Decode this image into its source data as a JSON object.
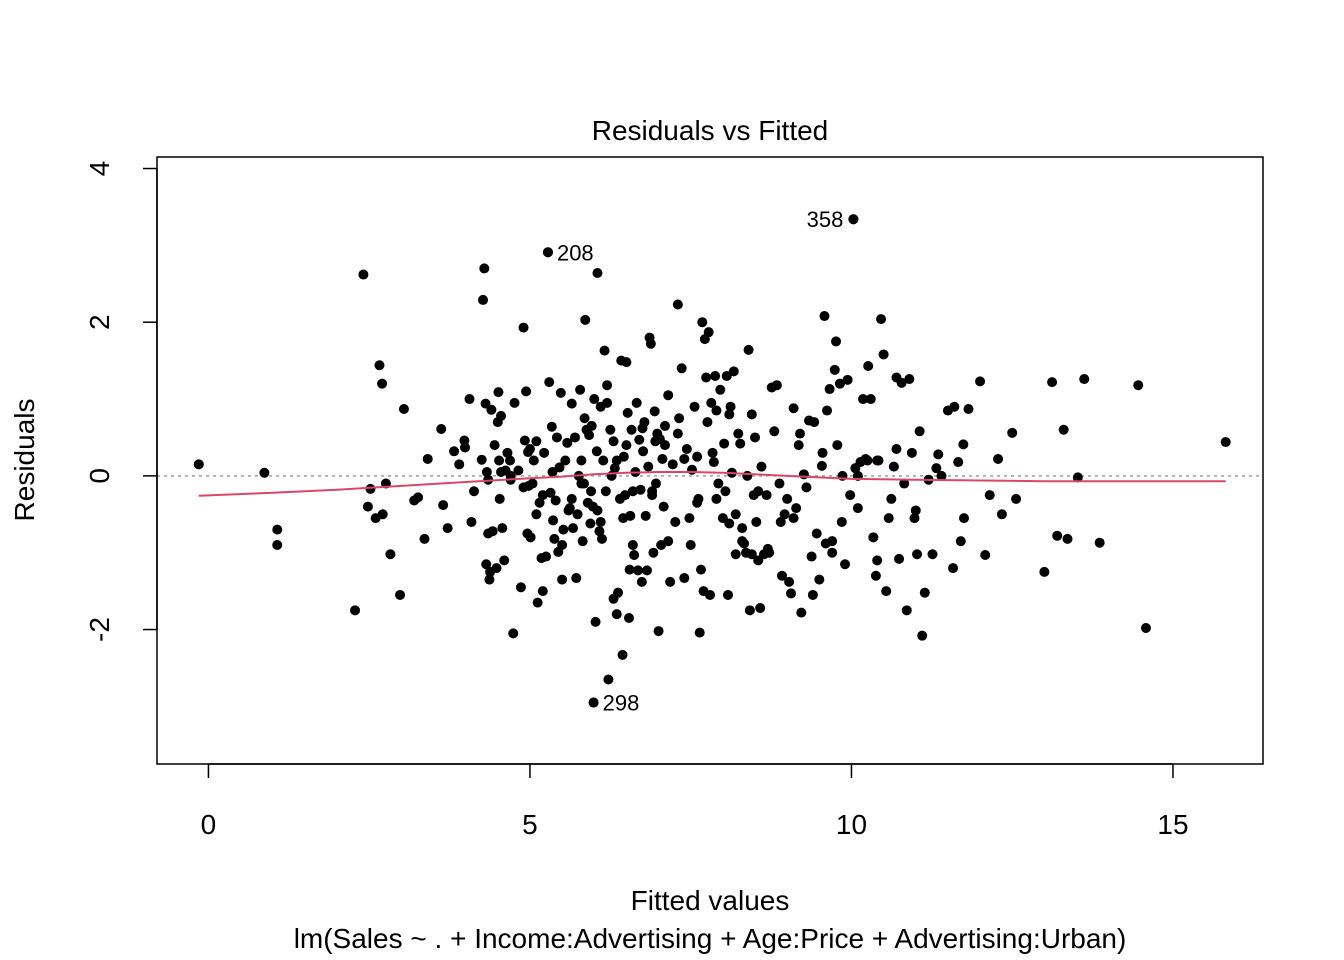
{
  "chart_data": {
    "type": "scatter",
    "title": "Residuals vs Fitted",
    "xlabel": "Fitted values",
    "ylabel": "Residuals",
    "subtitle": "lm(Sales ~ . + Income:Advertising + Age:Price + Advertising:Urban)",
    "xlim": [
      -0.8,
      16.4
    ],
    "ylim": [
      -3.75,
      4.15
    ],
    "x_ticks": [
      0,
      5,
      10,
      15
    ],
    "y_ticks": [
      -2,
      0,
      2,
      4
    ],
    "x_tick_labels": [
      "0",
      "5",
      "10",
      "15"
    ],
    "y_tick_labels": [
      "-2",
      "0",
      "2",
      "4"
    ],
    "grid": false,
    "reference_line": {
      "y": 0,
      "style": "dotted",
      "color": "#9e9e9e"
    },
    "point_color": "#000000",
    "smooth_color": "#d9466b",
    "labeled_points": [
      {
        "label": "358",
        "x": 10.03,
        "y": 3.34,
        "side": "left"
      },
      {
        "label": "208",
        "x": 5.28,
        "y": 2.91,
        "side": "right"
      },
      {
        "label": "298",
        "x": 5.99,
        "y": -2.95,
        "side": "right"
      }
    ],
    "points": [
      [
        -0.15,
        0.15
      ],
      [
        0.87,
        0.04
      ],
      [
        1.07,
        -0.7
      ],
      [
        1.07,
        -0.9
      ],
      [
        2.28,
        -1.75
      ],
      [
        2.41,
        2.62
      ],
      [
        2.48,
        -0.4
      ],
      [
        2.52,
        -0.17
      ],
      [
        2.6,
        -0.55
      ],
      [
        2.66,
        1.44
      ],
      [
        2.7,
        1.2
      ],
      [
        2.71,
        -0.5
      ],
      [
        2.76,
        -0.1
      ],
      [
        2.83,
        -1.02
      ],
      [
        2.98,
        -1.55
      ],
      [
        3.04,
        0.87
      ],
      [
        3.2,
        -0.32
      ],
      [
        3.26,
        -0.28
      ],
      [
        3.36,
        -0.82
      ],
      [
        3.41,
        0.22
      ],
      [
        3.62,
        0.61
      ],
      [
        3.65,
        -0.38
      ],
      [
        3.72,
        -0.68
      ],
      [
        3.82,
        0.32
      ],
      [
        3.9,
        0.15
      ],
      [
        3.98,
        0.46
      ],
      [
        3.99,
        0.37
      ],
      [
        4.06,
        1.0
      ],
      [
        4.09,
        -0.6
      ],
      [
        4.13,
        -0.2
      ],
      [
        4.25,
        0.21
      ],
      [
        4.27,
        2.29
      ],
      [
        4.29,
        2.7
      ],
      [
        4.31,
        0.94
      ],
      [
        4.32,
        -1.15
      ],
      [
        4.33,
        0.05
      ],
      [
        4.35,
        -0.75
      ],
      [
        4.37,
        -1.35
      ],
      [
        4.38,
        -1.25
      ],
      [
        4.4,
        0.86
      ],
      [
        4.42,
        -0.72
      ],
      [
        4.45,
        0.4
      ],
      [
        4.48,
        -1.2
      ],
      [
        4.5,
        0.7
      ],
      [
        4.51,
        1.09
      ],
      [
        4.52,
        0.2
      ],
      [
        4.53,
        -0.3
      ],
      [
        4.55,
        0.78
      ],
      [
        4.57,
        -0.68
      ],
      [
        4.6,
        -1.1
      ],
      [
        4.62,
        0.07
      ],
      [
        4.65,
        0.3
      ],
      [
        4.69,
        0.2
      ],
      [
        4.7,
        0.0
      ],
      [
        4.74,
        -2.05
      ],
      [
        4.76,
        0.95
      ],
      [
        4.82,
        0.07
      ],
      [
        4.86,
        -1.45
      ],
      [
        4.9,
        1.93
      ],
      [
        4.92,
        0.46
      ],
      [
        4.94,
        1.1
      ],
      [
        4.96,
        -0.75
      ],
      [
        4.97,
        0.31
      ],
      [
        4.98,
        -0.13
      ],
      [
        5.0,
        0.35
      ],
      [
        5.01,
        -0.8
      ],
      [
        5.04,
        -0.1
      ],
      [
        5.06,
        0.2
      ],
      [
        5.1,
        -0.5
      ],
      [
        5.12,
        -1.65
      ],
      [
        5.15,
        -0.35
      ],
      [
        5.18,
        -1.07
      ],
      [
        5.2,
        -1.5
      ],
      [
        5.22,
        0.3
      ],
      [
        5.25,
        -1.05
      ],
      [
        5.28,
        2.91
      ],
      [
        5.3,
        1.22
      ],
      [
        5.32,
        -0.22
      ],
      [
        5.34,
        0.64
      ],
      [
        5.36,
        -0.58
      ],
      [
        5.38,
        -0.82
      ],
      [
        5.4,
        -0.32
      ],
      [
        5.42,
        0.5
      ],
      [
        5.44,
        -0.99
      ],
      [
        5.46,
        0.11
      ],
      [
        5.48,
        1.08
      ],
      [
        5.5,
        -1.35
      ],
      [
        5.52,
        -0.7
      ],
      [
        5.55,
        0.2
      ],
      [
        5.58,
        0.43
      ],
      [
        5.62,
        -0.42
      ],
      [
        5.65,
        0.94
      ],
      [
        5.67,
        -0.68
      ],
      [
        5.7,
        0.5
      ],
      [
        5.72,
        -1.33
      ],
      [
        5.74,
        -0.5
      ],
      [
        5.76,
        0.0
      ],
      [
        5.78,
        1.12
      ],
      [
        5.8,
        0.2
      ],
      [
        5.82,
        -0.85
      ],
      [
        5.84,
        -0.1
      ],
      [
        5.86,
        2.03
      ],
      [
        5.88,
        0.6
      ],
      [
        5.9,
        -0.35
      ],
      [
        5.92,
        0.53
      ],
      [
        5.94,
        -0.62
      ],
      [
        5.96,
        0.65
      ],
      [
        5.98,
        -0.4
      ],
      [
        5.99,
        -2.95
      ],
      [
        6.0,
        1.0
      ],
      [
        6.02,
        -1.9
      ],
      [
        6.04,
        0.32
      ],
      [
        6.05,
        2.64
      ],
      [
        6.08,
        -0.72
      ],
      [
        6.1,
        0.9
      ],
      [
        6.12,
        -0.82
      ],
      [
        6.14,
        0.2
      ],
      [
        6.16,
        1.63
      ],
      [
        6.18,
        -0.2
      ],
      [
        6.2,
        1.18
      ],
      [
        6.22,
        -2.65
      ],
      [
        6.25,
        0.6
      ],
      [
        6.27,
        0.0
      ],
      [
        6.3,
        -1.6
      ],
      [
        6.32,
        0.1
      ],
      [
        6.35,
        -1.8
      ],
      [
        6.37,
        -1.52
      ],
      [
        6.4,
        -0.3
      ],
      [
        6.42,
        1.5
      ],
      [
        6.44,
        -2.33
      ],
      [
        6.46,
        0.25
      ],
      [
        6.48,
        -0.25
      ],
      [
        6.5,
        1.48
      ],
      [
        6.52,
        0.82
      ],
      [
        6.54,
        -1.85
      ],
      [
        6.56,
        -0.52
      ],
      [
        6.58,
        0.6
      ],
      [
        6.6,
        -0.9
      ],
      [
        6.62,
        -1.03
      ],
      [
        6.64,
        0.05
      ],
      [
        6.66,
        0.95
      ],
      [
        6.68,
        -1.23
      ],
      [
        6.7,
        0.47
      ],
      [
        6.72,
        -0.18
      ],
      [
        6.74,
        -1.38
      ],
      [
        6.76,
        0.32
      ],
      [
        6.78,
        0.7
      ],
      [
        6.8,
        -0.52
      ],
      [
        6.82,
        -1.23
      ],
      [
        6.84,
        0.12
      ],
      [
        6.86,
        1.8
      ],
      [
        6.88,
        1.72
      ],
      [
        6.9,
        -0.2
      ],
      [
        6.92,
        -1.0
      ],
      [
        6.94,
        0.84
      ],
      [
        6.96,
        -0.1
      ],
      [
        6.98,
        0.55
      ],
      [
        7.0,
        -2.02
      ],
      [
        7.02,
        0.48
      ],
      [
        7.04,
        -0.9
      ],
      [
        7.06,
        0.22
      ],
      [
        7.08,
        -0.4
      ],
      [
        7.1,
        0.65
      ],
      [
        7.15,
        1.05
      ],
      [
        7.18,
        -1.38
      ],
      [
        7.22,
        0.15
      ],
      [
        7.26,
        -0.6
      ],
      [
        7.3,
        2.23
      ],
      [
        7.32,
        0.75
      ],
      [
        7.36,
        1.4
      ],
      [
        7.4,
        -1.33
      ],
      [
        7.44,
        0.35
      ],
      [
        7.48,
        -0.55
      ],
      [
        7.52,
        0.08
      ],
      [
        7.56,
        0.9
      ],
      [
        7.6,
        0.25
      ],
      [
        7.62,
        -0.3
      ],
      [
        7.64,
        -2.04
      ],
      [
        7.66,
        -1.22
      ],
      [
        7.68,
        2.0
      ],
      [
        7.7,
        -1.5
      ],
      [
        7.72,
        1.78
      ],
      [
        7.74,
        1.28
      ],
      [
        7.76,
        0.7
      ],
      [
        7.78,
        1.87
      ],
      [
        7.8,
        -1.55
      ],
      [
        7.82,
        0.95
      ],
      [
        7.84,
        0.3
      ],
      [
        7.86,
        0.18
      ],
      [
        7.88,
        1.3
      ],
      [
        7.9,
        0.85
      ],
      [
        7.93,
        -0.1
      ],
      [
        7.96,
        1.12
      ],
      [
        8.0,
        -0.55
      ],
      [
        8.02,
        0.42
      ],
      [
        8.04,
        -0.2
      ],
      [
        8.06,
        1.3
      ],
      [
        8.08,
        -1.55
      ],
      [
        8.1,
        -0.62
      ],
      [
        8.12,
        0.9
      ],
      [
        8.14,
        0.04
      ],
      [
        8.17,
        1.36
      ],
      [
        8.2,
        -0.5
      ],
      [
        8.24,
        0.55
      ],
      [
        8.27,
        0.42
      ],
      [
        8.3,
        -0.68
      ],
      [
        8.33,
        -0.88
      ],
      [
        8.36,
        -1.0
      ],
      [
        8.38,
        0.0
      ],
      [
        8.4,
        1.64
      ],
      [
        8.42,
        -1.75
      ],
      [
        8.45,
        0.8
      ],
      [
        8.48,
        -0.25
      ],
      [
        8.5,
        0.5
      ],
      [
        8.52,
        -0.6
      ],
      [
        8.55,
        -1.1
      ],
      [
        8.58,
        -1.72
      ],
      [
        8.6,
        0.12
      ],
      [
        8.64,
        -1.02
      ],
      [
        8.68,
        -0.25
      ],
      [
        8.72,
        -1.0
      ],
      [
        8.76,
        1.15
      ],
      [
        8.8,
        0.58
      ],
      [
        8.84,
        1.18
      ],
      [
        8.88,
        -0.1
      ],
      [
        8.92,
        -1.3
      ],
      [
        8.96,
        -0.5
      ],
      [
        9.0,
        -0.3
      ],
      [
        9.03,
        -1.38
      ],
      [
        9.06,
        -1.53
      ],
      [
        9.1,
        0.88
      ],
      [
        9.14,
        -0.42
      ],
      [
        9.18,
        0.4
      ],
      [
        9.22,
        -1.78
      ],
      [
        9.26,
        0.02
      ],
      [
        9.3,
        -0.15
      ],
      [
        9.34,
        0.72
      ],
      [
        9.38,
        -1.05
      ],
      [
        9.42,
        0.7
      ],
      [
        9.46,
        -0.75
      ],
      [
        9.5,
        -1.35
      ],
      [
        9.54,
        0.13
      ],
      [
        9.58,
        2.08
      ],
      [
        9.6,
        -0.88
      ],
      [
        9.62,
        0.85
      ],
      [
        9.66,
        1.13
      ],
      [
        9.7,
        -0.85
      ],
      [
        9.74,
        1.38
      ],
      [
        9.76,
        1.75
      ],
      [
        9.78,
        0.4
      ],
      [
        9.82,
        1.2
      ],
      [
        9.86,
        0.0
      ],
      [
        9.9,
        -1.15
      ],
      [
        9.94,
        1.25
      ],
      [
        9.98,
        -0.25
      ],
      [
        10.03,
        3.34
      ],
      [
        10.06,
        0.1
      ],
      [
        10.1,
        -0.42
      ],
      [
        10.14,
        0.18
      ],
      [
        10.18,
        1.0
      ],
      [
        10.22,
        0.22
      ],
      [
        10.26,
        1.43
      ],
      [
        10.3,
        1.0
      ],
      [
        10.34,
        -0.8
      ],
      [
        10.38,
        -1.3
      ],
      [
        10.42,
        0.2
      ],
      [
        10.46,
        2.04
      ],
      [
        10.5,
        1.58
      ],
      [
        10.54,
        -1.5
      ],
      [
        10.58,
        -0.55
      ],
      [
        10.62,
        -0.3
      ],
      [
        10.66,
        0.12
      ],
      [
        10.7,
        1.28
      ],
      [
        10.74,
        -1.08
      ],
      [
        10.78,
        1.21
      ],
      [
        10.82,
        -0.1
      ],
      [
        10.86,
        -1.75
      ],
      [
        10.9,
        1.26
      ],
      [
        10.94,
        0.3
      ],
      [
        10.98,
        -0.55
      ],
      [
        11.02,
        -1.02
      ],
      [
        11.06,
        0.58
      ],
      [
        11.1,
        -2.08
      ],
      [
        11.14,
        -1.52
      ],
      [
        11.2,
        -0.05
      ],
      [
        11.26,
        -1.02
      ],
      [
        11.32,
        0.1
      ],
      [
        11.4,
        0.0
      ],
      [
        11.5,
        0.85
      ],
      [
        11.58,
        -1.2
      ],
      [
        11.66,
        0.18
      ],
      [
        11.74,
        0.41
      ],
      [
        11.82,
        0.87
      ],
      [
        12.0,
        1.23
      ],
      [
        12.08,
        -1.03
      ],
      [
        12.15,
        -0.25
      ],
      [
        12.28,
        0.22
      ],
      [
        12.34,
        -0.5
      ],
      [
        12.5,
        0.56
      ],
      [
        12.56,
        -0.3
      ],
      [
        13.0,
        -1.25
      ],
      [
        13.12,
        1.22
      ],
      [
        13.2,
        -0.78
      ],
      [
        13.3,
        0.6
      ],
      [
        13.36,
        -0.82
      ],
      [
        13.52,
        -0.02
      ],
      [
        13.62,
        1.26
      ],
      [
        13.86,
        -0.87
      ],
      [
        14.46,
        1.18
      ],
      [
        14.58,
        -1.98
      ],
      [
        15.82,
        0.44
      ],
      [
        11.7,
        -0.85
      ],
      [
        11.75,
        -0.55
      ],
      [
        11.6,
        0.9
      ],
      [
        11.35,
        0.28
      ],
      [
        10.7,
        0.35
      ],
      [
        10.4,
        -1.1
      ],
      [
        10.4,
        0.2
      ],
      [
        9.2,
        0.55
      ],
      [
        9.1,
        -0.55
      ],
      [
        8.9,
        -0.6
      ],
      [
        8.7,
        -0.95
      ],
      [
        8.55,
        -0.2
      ],
      [
        8.2,
        -1.02
      ],
      [
        7.9,
        -0.3
      ],
      [
        7.5,
        -0.9
      ],
      [
        7.3,
        0.55
      ],
      [
        7.1,
        0.4
      ],
      [
        6.95,
        0.45
      ],
      [
        6.75,
        0.62
      ],
      [
        6.6,
        -0.2
      ],
      [
        6.45,
        -0.55
      ],
      [
        6.3,
        0.45
      ],
      [
        6.1,
        -0.6
      ],
      [
        5.95,
        -0.2
      ],
      [
        5.8,
        -0.1
      ],
      [
        5.6,
        -0.45
      ],
      [
        5.5,
        -0.9
      ],
      [
        5.35,
        0.05
      ],
      [
        5.2,
        -0.25
      ],
      [
        5.1,
        0.45
      ],
      [
        4.9,
        -0.15
      ],
      [
        4.7,
        -0.05
      ],
      [
        4.55,
        0.05
      ],
      [
        4.35,
        -0.05
      ],
      [
        6.2,
        0.95
      ],
      [
        6.5,
        0.4
      ],
      [
        7.4,
        0.22
      ],
      [
        8.1,
        0.8
      ],
      [
        8.3,
        -0.85
      ],
      [
        9.4,
        -1.55
      ],
      [
        9.7,
        -1.0
      ],
      [
        10.25,
        0.2
      ],
      [
        5.65,
        -0.3
      ],
      [
        5.85,
        0.75
      ],
      [
        6.05,
        -0.45
      ],
      [
        6.35,
        0.2
      ],
      [
        6.55,
        -1.22
      ],
      [
        6.9,
        -0.25
      ],
      [
        7.15,
        -0.85
      ],
      [
        7.6,
        -0.35
      ],
      [
        8.45,
        -1.02
      ],
      [
        9.55,
        0.3
      ],
      [
        9.85,
        -0.6
      ],
      [
        10.1,
        0.0
      ],
      [
        11.0,
        -0.45
      ]
    ],
    "smooth_line": [
      [
        -0.15,
        -0.26
      ],
      [
        1.0,
        -0.22
      ],
      [
        2.0,
        -0.18
      ],
      [
        3.0,
        -0.13
      ],
      [
        4.0,
        -0.08
      ],
      [
        5.0,
        -0.03
      ],
      [
        5.5,
        -0.01
      ],
      [
        6.0,
        0.02
      ],
      [
        6.5,
        0.04
      ],
      [
        7.0,
        0.05
      ],
      [
        7.5,
        0.05
      ],
      [
        8.0,
        0.04
      ],
      [
        8.5,
        0.02
      ],
      [
        9.0,
        0.0
      ],
      [
        9.5,
        -0.02
      ],
      [
        10.0,
        -0.04
      ],
      [
        11.0,
        -0.05
      ],
      [
        12.0,
        -0.06
      ],
      [
        13.0,
        -0.07
      ],
      [
        14.0,
        -0.07
      ],
      [
        15.0,
        -0.07
      ],
      [
        15.82,
        -0.07
      ]
    ]
  }
}
